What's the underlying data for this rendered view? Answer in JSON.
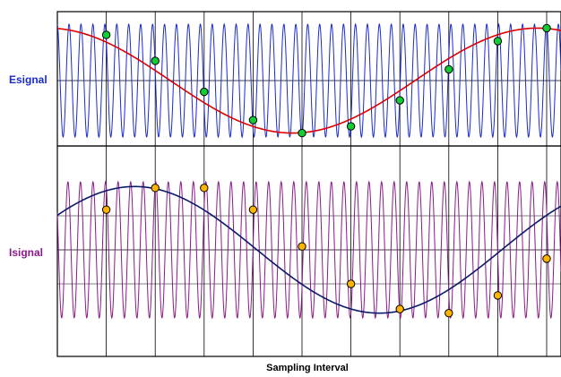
{
  "chart_data": {
    "type": "line",
    "xlabel": "Sampling Interval",
    "sample_x": [
      1,
      2,
      3,
      4,
      5,
      6,
      7,
      8,
      9,
      10
    ],
    "panels": [
      {
        "name": "Esignal",
        "ylim": [
          -1,
          1
        ],
        "label_color": "#1a2bcc",
        "carrier": {
          "cycles_per_interval": 4.1,
          "color": "#1a2bcc"
        },
        "alias": {
          "color": "#dd0000",
          "amplitude": 0.93,
          "phase_deg": 96.9
        },
        "samples": {
          "color": "#11cc33",
          "x": [
            1,
            2,
            3,
            4,
            5,
            6,
            7,
            8,
            9,
            10
          ],
          "y": [
            0.81,
            0.35,
            -0.2,
            -0.7,
            -0.93,
            -0.81,
            -0.35,
            0.2,
            0.7,
            0.93
          ]
        }
      },
      {
        "name": "Isignal",
        "ylim": [
          -1,
          1
        ],
        "label_color": "#8a1a8a",
        "carrier": {
          "cycles_per_interval": 3.9,
          "color": "#8a1a8a"
        },
        "alias": {
          "color": "#0a1a6a",
          "amplitude": 0.93,
          "phase_deg": 146.9
        },
        "samples": {
          "color": "#ffb400",
          "x": [
            1,
            2,
            3,
            4,
            5,
            6,
            7,
            8,
            9,
            10
          ],
          "y": [
            0.59,
            0.91,
            0.91,
            0.59,
            0.05,
            -0.5,
            -0.87,
            -0.93,
            -0.67,
            -0.13
          ]
        }
      }
    ]
  }
}
